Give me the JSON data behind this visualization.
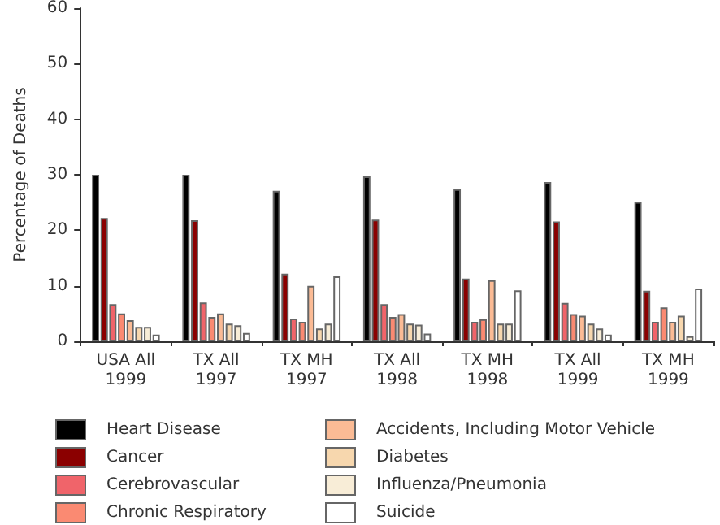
{
  "chart_data": {
    "type": "bar",
    "ylabel": "Percentage of Deaths",
    "categories": [
      "USA All\n1999",
      "TX All\n1997",
      "TX MH\n1997",
      "TX All\n1998",
      "TX MH\n1998",
      "TX All\n1999",
      "TX MH\n1999"
    ],
    "series": [
      {
        "name": "Heart Disease",
        "color": "#000000",
        "values": [
          30,
          30,
          27.1,
          29.7,
          27.4,
          28.7,
          25.1
        ]
      },
      {
        "name": "Cancer",
        "color": "#8b0000",
        "values": [
          22.2,
          21.8,
          12.2,
          21.9,
          11.3,
          21.6,
          9.1
        ]
      },
      {
        "name": "Cerebrovascular",
        "color": "#f0646a",
        "values": [
          6.7,
          7,
          4.1,
          6.7,
          3.5,
          6.9,
          3.5
        ]
      },
      {
        "name": "Chronic Respiratory",
        "color": "#fa8a72",
        "values": [
          5,
          4.4,
          3.5,
          4.4,
          4,
          4.9,
          6.1
        ]
      },
      {
        "name": "Accidents, Including Motor Vehicle",
        "color": "#fbbb95",
        "values": [
          3.8,
          5,
          10,
          4.9,
          11,
          4.6,
          3.5
        ]
      },
      {
        "name": "Diabetes",
        "color": "#f7d7ae",
        "values": [
          2.6,
          3.2,
          2.3,
          3.2,
          3.2,
          3.2,
          4.6
        ]
      },
      {
        "name": "Influenza/Pneumonia",
        "color": "#f8edd7",
        "values": [
          2.6,
          2.9,
          3.2,
          3,
          3.2,
          2.3,
          0.9
        ]
      },
      {
        "name": "Suicide",
        "color": "#ffffff",
        "values": [
          1.2,
          1.5,
          11.7,
          1.4,
          9.2,
          1.2,
          9.5
        ]
      }
    ],
    "ylim": [
      0,
      60
    ],
    "yticks": [
      0,
      10,
      20,
      30,
      40,
      50,
      60
    ],
    "grid": false,
    "legend": "bottom"
  }
}
